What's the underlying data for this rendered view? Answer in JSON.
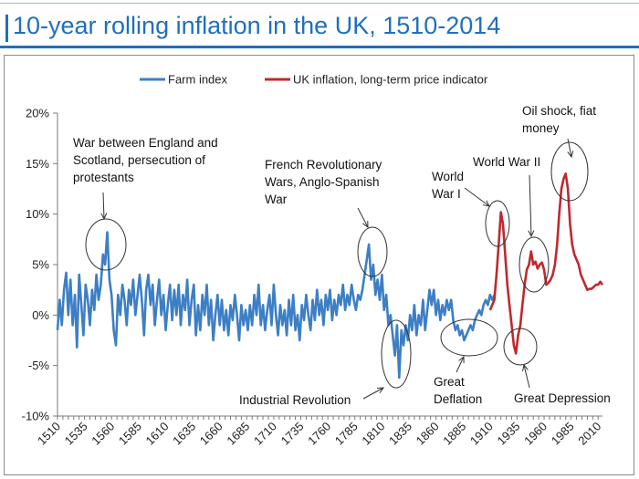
{
  "title": "10-year rolling inflation in the UK, 1510-2014",
  "colors": {
    "accent": "#1f6fbf",
    "farm": "#3d7fc4",
    "uk": "#c0282d"
  },
  "chart_data": {
    "type": "line",
    "title": "10-year rolling inflation in the UK, 1510-2014",
    "xlabel": "",
    "ylabel": "",
    "xlim": [
      1510,
      2014
    ],
    "ylim": [
      -10,
      20
    ],
    "grid": false,
    "legend": "top",
    "x_ticks": [
      1510,
      1535,
      1560,
      1585,
      1610,
      1635,
      1660,
      1685,
      1710,
      1735,
      1760,
      1785,
      1810,
      1835,
      1860,
      1885,
      1910,
      1935,
      1960,
      1985,
      2010
    ],
    "y_ticks": [
      {
        "value": 20,
        "label": "20%"
      },
      {
        "value": 15,
        "label": "15%"
      },
      {
        "value": 10,
        "label": "10%"
      },
      {
        "value": 5,
        "label": "5%"
      },
      {
        "value": 0,
        "label": "0%"
      },
      {
        "value": -5,
        "label": "-5%"
      },
      {
        "value": -10,
        "label": "-10%"
      }
    ],
    "series": [
      {
        "name": "Farm index",
        "color": "#3d7fc4",
        "points": [
          [
            1510,
            -1.5
          ],
          [
            1512,
            1.5
          ],
          [
            1514,
            -1
          ],
          [
            1516,
            2.5
          ],
          [
            1518,
            4.2
          ],
          [
            1520,
            0
          ],
          [
            1522,
            3.5
          ],
          [
            1524,
            -1
          ],
          [
            1526,
            2
          ],
          [
            1528,
            -3.2
          ],
          [
            1530,
            4
          ],
          [
            1532,
            1
          ],
          [
            1534,
            -2
          ],
          [
            1536,
            3
          ],
          [
            1538,
            1.5
          ],
          [
            1540,
            -1
          ],
          [
            1542,
            2.5
          ],
          [
            1544,
            0.5
          ],
          [
            1546,
            4
          ],
          [
            1548,
            1.5
          ],
          [
            1550,
            3
          ],
          [
            1552,
            6
          ],
          [
            1554,
            5
          ],
          [
            1556,
            8.2
          ],
          [
            1558,
            3.5
          ],
          [
            1560,
            2
          ],
          [
            1562,
            -1.5
          ],
          [
            1564,
            -3
          ],
          [
            1566,
            2
          ],
          [
            1568,
            0
          ],
          [
            1570,
            3
          ],
          [
            1572,
            1.5
          ],
          [
            1574,
            -1
          ],
          [
            1576,
            2.5
          ],
          [
            1578,
            1
          ],
          [
            1580,
            3.5
          ],
          [
            1582,
            0
          ],
          [
            1584,
            2
          ],
          [
            1586,
            4
          ],
          [
            1588,
            1.5
          ],
          [
            1590,
            -2
          ],
          [
            1592,
            2.5
          ],
          [
            1594,
            4
          ],
          [
            1596,
            1
          ],
          [
            1598,
            3
          ],
          [
            1600,
            -1
          ],
          [
            1602,
            1.5
          ],
          [
            1604,
            3.5
          ],
          [
            1606,
            0
          ],
          [
            1608,
            2
          ],
          [
            1610,
            -1.5
          ],
          [
            1612,
            1
          ],
          [
            1614,
            3
          ],
          [
            1616,
            -0.5
          ],
          [
            1618,
            2.5
          ],
          [
            1620,
            0
          ],
          [
            1622,
            3
          ],
          [
            1624,
            -1
          ],
          [
            1626,
            2
          ],
          [
            1628,
            0.5
          ],
          [
            1630,
            3.5
          ],
          [
            1632,
            -1
          ],
          [
            1634,
            1.5
          ],
          [
            1636,
            3
          ],
          [
            1638,
            -2
          ],
          [
            1640,
            1
          ],
          [
            1642,
            -1.5
          ],
          [
            1644,
            2
          ],
          [
            1646,
            0
          ],
          [
            1648,
            3
          ],
          [
            1650,
            -1
          ],
          [
            1652,
            1.5
          ],
          [
            1654,
            -2.5
          ],
          [
            1656,
            0
          ],
          [
            1658,
            2
          ],
          [
            1660,
            -1
          ],
          [
            1662,
            1.5
          ],
          [
            1664,
            -1.5
          ],
          [
            1666,
            0.5
          ],
          [
            1668,
            -2
          ],
          [
            1670,
            1
          ],
          [
            1672,
            -0.5
          ],
          [
            1674,
            2
          ],
          [
            1676,
            0
          ],
          [
            1678,
            -2.5
          ],
          [
            1680,
            1
          ],
          [
            1682,
            -1
          ],
          [
            1684,
            0.5
          ],
          [
            1686,
            -1.5
          ],
          [
            1688,
            1
          ],
          [
            1690,
            -1
          ],
          [
            1692,
            2
          ],
          [
            1694,
            0
          ],
          [
            1696,
            3
          ],
          [
            1698,
            -1
          ],
          [
            1700,
            1
          ],
          [
            1702,
            -1.5
          ],
          [
            1704,
            0.5
          ],
          [
            1706,
            2
          ],
          [
            1708,
            -1
          ],
          [
            1710,
            3
          ],
          [
            1712,
            0
          ],
          [
            1714,
            -2
          ],
          [
            1716,
            1
          ],
          [
            1718,
            -1
          ],
          [
            1720,
            0.5
          ],
          [
            1722,
            -2
          ],
          [
            1724,
            1.5
          ],
          [
            1726,
            -1
          ],
          [
            1728,
            2
          ],
          [
            1730,
            -1.5
          ],
          [
            1732,
            0
          ],
          [
            1734,
            -2.5
          ],
          [
            1736,
            1
          ],
          [
            1738,
            -0.5
          ],
          [
            1740,
            2
          ],
          [
            1742,
            0
          ],
          [
            1744,
            -1.5
          ],
          [
            1746,
            1.5
          ],
          [
            1748,
            -0.5
          ],
          [
            1750,
            2.5
          ],
          [
            1752,
            0
          ],
          [
            1754,
            1.5
          ],
          [
            1756,
            -1
          ],
          [
            1758,
            2
          ],
          [
            1760,
            0.5
          ],
          [
            1762,
            2.5
          ],
          [
            1764,
            -0.5
          ],
          [
            1766,
            1.5
          ],
          [
            1768,
            0
          ],
          [
            1770,
            2
          ],
          [
            1772,
            1
          ],
          [
            1774,
            3
          ],
          [
            1776,
            0.5
          ],
          [
            1778,
            2
          ],
          [
            1780,
            1
          ],
          [
            1782,
            3
          ],
          [
            1784,
            1.5
          ],
          [
            1786,
            0.5
          ],
          [
            1788,
            2
          ],
          [
            1790,
            1.5
          ],
          [
            1792,
            2.5
          ],
          [
            1794,
            4
          ],
          [
            1796,
            5.5
          ],
          [
            1798,
            7
          ],
          [
            1800,
            3.5
          ],
          [
            1802,
            5
          ],
          [
            1804,
            2
          ],
          [
            1806,
            3.5
          ],
          [
            1808,
            1.5
          ],
          [
            1810,
            4
          ],
          [
            1812,
            0.5
          ],
          [
            1814,
            2
          ],
          [
            1816,
            -1
          ],
          [
            1818,
            0
          ],
          [
            1820,
            -2
          ],
          [
            1822,
            -4
          ],
          [
            1824,
            -1
          ],
          [
            1826,
            -6.2
          ],
          [
            1828,
            -1.5
          ],
          [
            1830,
            -3
          ],
          [
            1832,
            -1
          ],
          [
            1834,
            -2.5
          ],
          [
            1836,
            0
          ],
          [
            1838,
            -1.5
          ],
          [
            1840,
            1
          ],
          [
            1842,
            -2
          ],
          [
            1844,
            0
          ],
          [
            1846,
            -1
          ],
          [
            1848,
            1.5
          ],
          [
            1850,
            -1.5
          ],
          [
            1852,
            0.5
          ],
          [
            1854,
            2.5
          ],
          [
            1856,
            1
          ],
          [
            1858,
            2.5
          ],
          [
            1860,
            0
          ],
          [
            1862,
            1.5
          ],
          [
            1864,
            -0.5
          ],
          [
            1866,
            1
          ],
          [
            1868,
            0
          ],
          [
            1870,
            1.5
          ],
          [
            1872,
            0.5
          ],
          [
            1874,
            1.5
          ],
          [
            1876,
            -0.5
          ],
          [
            1878,
            -1.5
          ],
          [
            1880,
            -1
          ],
          [
            1882,
            -2
          ],
          [
            1884,
            -1.5
          ],
          [
            1886,
            -2.5
          ],
          [
            1888,
            -2
          ],
          [
            1890,
            -1.5
          ],
          [
            1892,
            -1
          ],
          [
            1894,
            -1.5
          ],
          [
            1896,
            -0.5
          ],
          [
            1898,
            0
          ],
          [
            1900,
            0.5
          ],
          [
            1902,
            0
          ],
          [
            1904,
            1
          ],
          [
            1906,
            1.5
          ],
          [
            1908,
            1
          ],
          [
            1910,
            2
          ],
          [
            1912,
            1.5
          ],
          [
            1914,
            2
          ]
        ]
      },
      {
        "name": "UK inflation, long-term price indicator",
        "color": "#c0282d",
        "points": [
          [
            1910,
            0.5
          ],
          [
            1912,
            1
          ],
          [
            1914,
            1.5
          ],
          [
            1916,
            4
          ],
          [
            1918,
            7
          ],
          [
            1920,
            10.2
          ],
          [
            1922,
            9
          ],
          [
            1924,
            6
          ],
          [
            1926,
            3
          ],
          [
            1928,
            1
          ],
          [
            1930,
            -1
          ],
          [
            1932,
            -3
          ],
          [
            1934,
            -3.8
          ],
          [
            1936,
            -2
          ],
          [
            1938,
            -1
          ],
          [
            1940,
            1
          ],
          [
            1942,
            3
          ],
          [
            1944,
            4.5
          ],
          [
            1946,
            5
          ],
          [
            1948,
            6.3
          ],
          [
            1950,
            5
          ],
          [
            1952,
            5.3
          ],
          [
            1954,
            4.6
          ],
          [
            1956,
            5
          ],
          [
            1958,
            5.2
          ],
          [
            1960,
            4.5
          ],
          [
            1962,
            3
          ],
          [
            1964,
            3.2
          ],
          [
            1966,
            3.5
          ],
          [
            1968,
            4
          ],
          [
            1970,
            5
          ],
          [
            1972,
            7
          ],
          [
            1974,
            10
          ],
          [
            1976,
            12.5
          ],
          [
            1978,
            13.5
          ],
          [
            1980,
            14
          ],
          [
            1982,
            12.5
          ],
          [
            1984,
            9
          ],
          [
            1986,
            7
          ],
          [
            1988,
            6
          ],
          [
            1990,
            5.5
          ],
          [
            1992,
            5
          ],
          [
            1994,
            4
          ],
          [
            1996,
            3.5
          ],
          [
            1998,
            3
          ],
          [
            2000,
            2.5
          ],
          [
            2002,
            2.6
          ],
          [
            2004,
            2.6
          ],
          [
            2006,
            2.8
          ],
          [
            2008,
            3
          ],
          [
            2010,
            3
          ],
          [
            2012,
            3.3
          ],
          [
            2014,
            3
          ]
        ]
      }
    ],
    "annotations": [
      {
        "lines": [
          "War between England and",
          "Scotland, persecution of",
          "protestants"
        ],
        "x": 1556,
        "y": 5.5
      },
      {
        "lines": [
          "French Revolutionary",
          "Wars, Anglo-Spanish",
          "War"
        ],
        "x": 1799,
        "y": 5.5
      },
      {
        "lines": [
          "Industrial Revolution"
        ],
        "x": 1828,
        "y": -3
      },
      {
        "lines": [
          "World",
          "War I"
        ],
        "x": 1921,
        "y": 7.5
      },
      {
        "lines": [
          "World War II"
        ],
        "x": 1945,
        "y": 4.5
      },
      {
        "lines": [
          "Great",
          "Deflation"
        ],
        "x": 1885,
        "y": -1.5
      },
      {
        "lines": [
          "Great Depression"
        ],
        "x": 1937,
        "y": -2.5
      },
      {
        "lines": [
          "Oil shock, fiat",
          "money"
        ],
        "x": 1980,
        "y": 12.5
      }
    ]
  }
}
